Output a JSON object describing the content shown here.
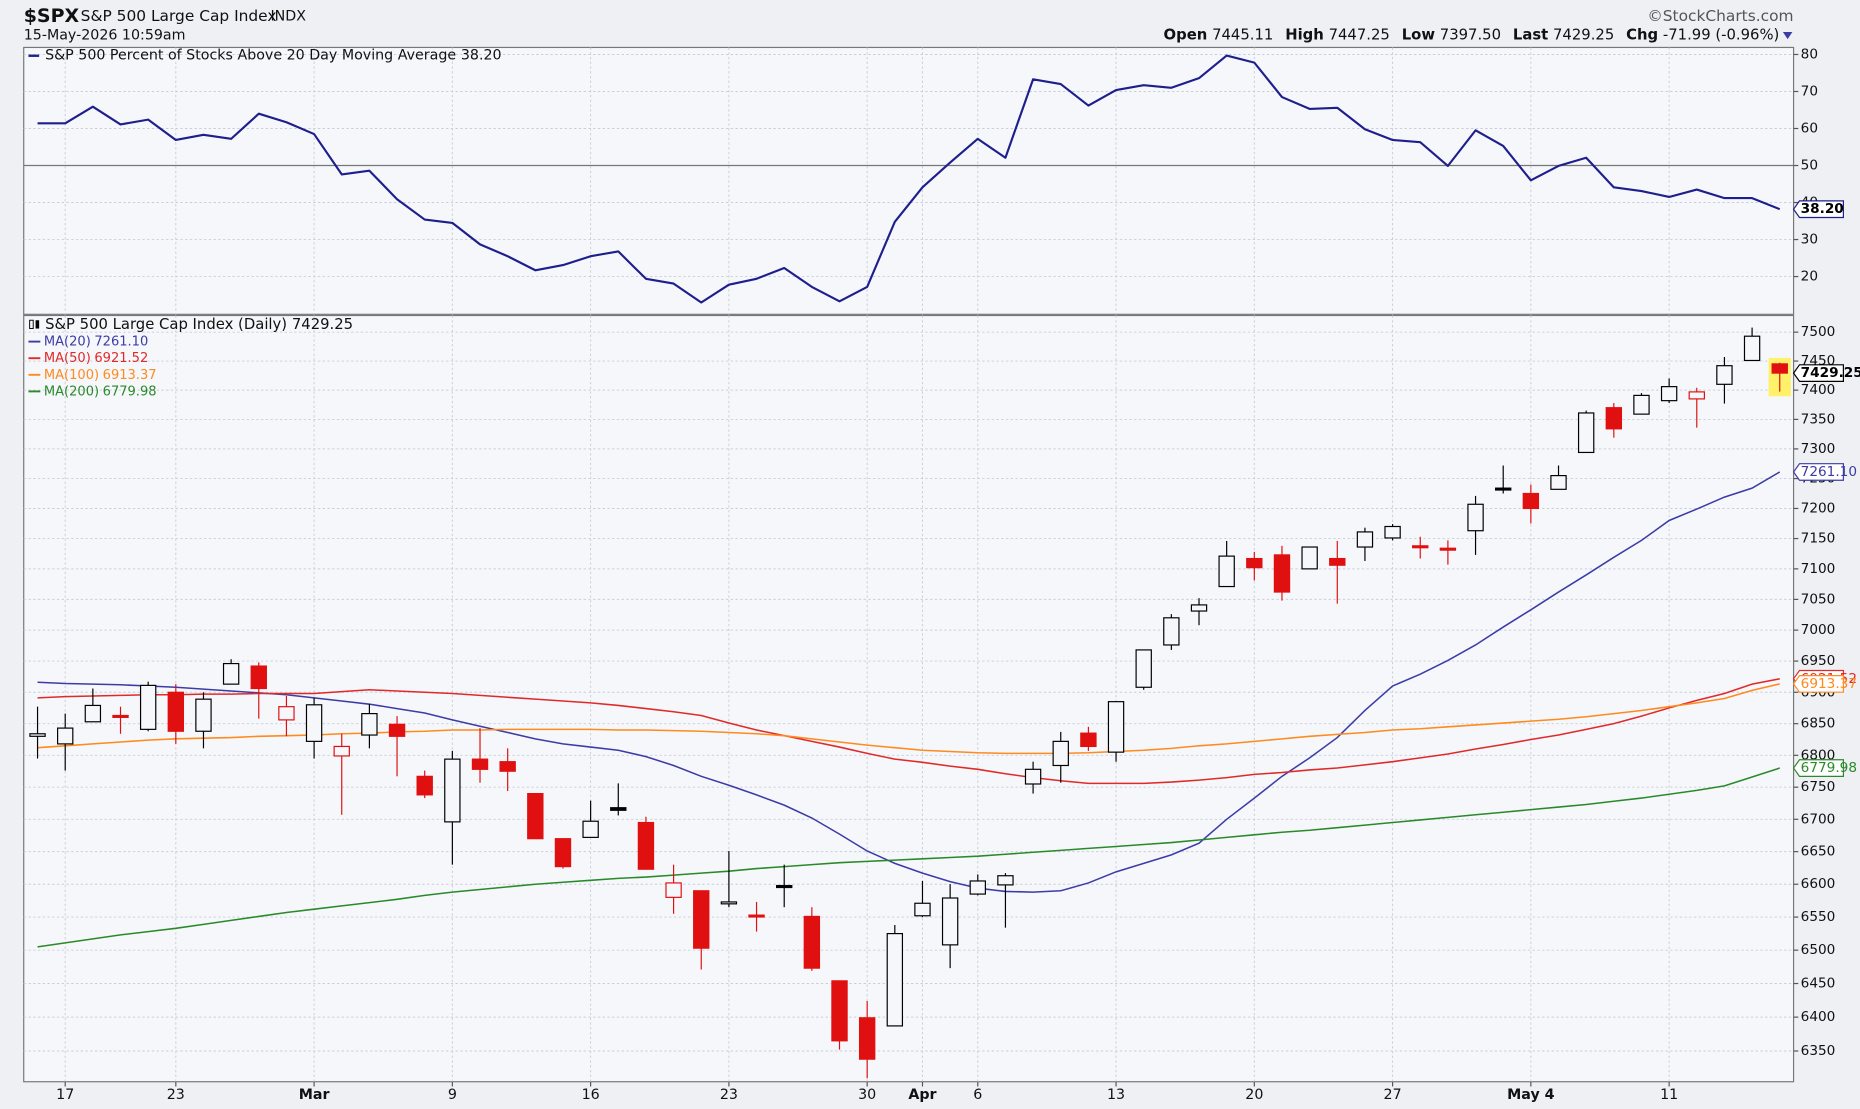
{
  "header": {
    "symbol": "$SPX",
    "name": "S&P 500 Large Cap Index",
    "exchange": "INDX",
    "datetime": "15-May-2026 10:59am",
    "source": "©StockCharts.com",
    "quote": [
      {
        "label": "Open",
        "value": "7445.11"
      },
      {
        "label": "High",
        "value": "7447.25"
      },
      {
        "label": "Low",
        "value": "7397.50"
      },
      {
        "label": "Last",
        "value": "7429.25"
      },
      {
        "label": "Chg",
        "value": "-71.99 (-0.96%)"
      }
    ]
  },
  "chart_data": [
    {
      "type": "line",
      "legend": "S&P 500 Percent of Stocks Above 20 Day Moving Average",
      "last_label": "38.20",
      "color": "#1e1e8c",
      "values": [
        61.4,
        61.4,
        65.9,
        61.1,
        62.4,
        56.9,
        58.3,
        57.2,
        64.0,
        61.7,
        58.5,
        47.6,
        48.6,
        40.9,
        35.4,
        34.5,
        28.7,
        25.5,
        21.7,
        23.1,
        25.5,
        26.8,
        19.4,
        18.1,
        13.0,
        17.8,
        19.4,
        22.3,
        17.2,
        13.3,
        17.2,
        34.8,
        44.1,
        50.8,
        57.2,
        52.1,
        73.3,
        72.0,
        66.2,
        70.4,
        71.7,
        71.0,
        73.6,
        79.7,
        77.8,
        68.5,
        65.3,
        65.6,
        59.8,
        56.9,
        56.3,
        49.9,
        59.5,
        55.3,
        46.0,
        49.9,
        52.1,
        44.1,
        43.1,
        41.5,
        43.5,
        41.2,
        41.2,
        38.2
      ],
      "ylim": [
        9.8,
        81.9
      ],
      "yticks": [
        20,
        30,
        40,
        50,
        60,
        70,
        80
      ],
      "reference": 50,
      "grid": true
    },
    {
      "type": "candlestick",
      "title": "S&P 500 Large Cap Index (Daily)",
      "last_label": "7429.25",
      "log": true,
      "grid": true,
      "up_color": "#000000",
      "down_color": "#e01010",
      "categories": [
        null,
        "17",
        null,
        null,
        null,
        "23",
        null,
        null,
        null,
        null,
        "Mar",
        null,
        null,
        null,
        null,
        "9",
        null,
        null,
        null,
        null,
        "16",
        null,
        null,
        null,
        null,
        "23",
        null,
        null,
        null,
        null,
        "30",
        null,
        "Apr",
        null,
        "6",
        null,
        null,
        null,
        null,
        "13",
        null,
        null,
        null,
        null,
        "20",
        null,
        null,
        null,
        null,
        "27",
        null,
        null,
        null,
        null,
        "May 4",
        null,
        null,
        null,
        null,
        "11",
        null,
        null,
        null,
        null
      ],
      "open": [
        6830,
        6818,
        6853,
        6863,
        6841,
        6900,
        6838,
        6913,
        6942,
        6856,
        6822,
        6799,
        6832,
        6849,
        6767,
        6696,
        6794,
        6790,
        6740,
        6670,
        6672,
        6718,
        6695,
        6580,
        6590,
        6571,
        6553,
        6598,
        6551,
        6454,
        6399,
        6387,
        6552,
        6508,
        6585,
        6599,
        6755,
        6784,
        6835,
        6805,
        6908,
        6976,
        7031,
        7071,
        7117,
        7123,
        7100,
        7117,
        7136,
        7151,
        7138,
        7134,
        7163,
        7234,
        7225,
        7232,
        7294,
        7370,
        7359,
        7382,
        7385,
        7410,
        7451,
        7445.11
      ],
      "high": [
        6877,
        6866,
        6906,
        6877,
        6917,
        6913,
        6900,
        6953,
        6948,
        6894,
        6891,
        6834,
        6881,
        6862,
        6776,
        6807,
        6843,
        6811,
        6740,
        6670,
        6729,
        6756,
        6704,
        6630,
        6590,
        6651,
        6573,
        6630,
        6565,
        6454,
        6424,
        6538,
        6605,
        6600,
        6615,
        6617,
        6790,
        6837,
        6845,
        6885,
        6968,
        7026,
        7052,
        7146,
        7128,
        7138,
        7136,
        7146,
        7168,
        7174,
        7153,
        7147,
        7221,
        7272,
        7240,
        7272,
        7365,
        7378,
        7395,
        7420,
        7404,
        7457,
        7508,
        7447.25
      ],
      "low": [
        6795,
        6776,
        6853,
        6834,
        6838,
        6818,
        6811,
        6913,
        6858,
        6830,
        6795,
        6707,
        6811,
        6767,
        6733,
        6630,
        6757,
        6744,
        6670,
        6624,
        6672,
        6706,
        6623,
        6555,
        6471,
        6565,
        6528,
        6565,
        6469,
        6352,
        6310,
        6387,
        6550,
        6473,
        6583,
        6534,
        6740,
        6757,
        6807,
        6790,
        6904,
        6968,
        7008,
        7071,
        7081,
        7048,
        7100,
        7043,
        7113,
        7147,
        7117,
        7107,
        7123,
        7225,
        7175,
        7232,
        7294,
        7319,
        7359,
        7378,
        7336,
        7377,
        7451,
        7397.5
      ],
      "close": [
        6834,
        6843,
        6879,
        6861,
        6911,
        6838,
        6889,
        6946,
        6906,
        6877,
        6880,
        6814,
        6866,
        6830,
        6738,
        6794,
        6778,
        6775,
        6670,
        6627,
        6697,
        6714,
        6623,
        6602,
        6503,
        6573,
        6551,
        6595,
        6473,
        6365,
        6338,
        6525,
        6571,
        6579,
        6605,
        6613,
        6778,
        6822,
        6814,
        6885,
        6968,
        7020,
        7041,
        7121,
        7102,
        7062,
        7136,
        7106,
        7161,
        7170,
        7136,
        7132,
        7207,
        7232,
        7200,
        7255,
        7361,
        7334,
        7391,
        7406,
        7397,
        7442,
        7493,
        7429.25
      ],
      "ylim": [
        6305,
        7529
      ],
      "yticks": [
        6350,
        6400,
        6450,
        6500,
        6550,
        6600,
        6650,
        6700,
        6750,
        6800,
        6850,
        6900,
        6950,
        7000,
        7050,
        7100,
        7150,
        7200,
        7250,
        7300,
        7350,
        7400,
        7450,
        7500
      ],
      "series": [
        {
          "name": "MA(20)",
          "last_label": "7261.10",
          "color": "#3c3ca6",
          "values": [
            6916,
            6914,
            6913,
            6912,
            6910,
            6908,
            6905,
            6902,
            6899,
            6896,
            6891,
            6886,
            6881,
            6874,
            6867,
            6856,
            6846,
            6836,
            6826,
            6818,
            6813,
            6808,
            6798,
            6784,
            6767,
            6753,
            6738,
            6722,
            6702,
            6677,
            6651,
            6632,
            6617,
            6604,
            6594,
            6589,
            6588,
            6590,
            6602,
            6619,
            6632,
            6645,
            6663,
            6700,
            6733,
            6767,
            6796,
            6828,
            6871,
            6910,
            6929,
            6951,
            6976,
            7005,
            7033,
            7062,
            7090,
            7119,
            7147,
            7180,
            7199,
            7219,
            7234,
            7261.1
          ]
        },
        {
          "name": "MA(50)",
          "last_label": "6921.52",
          "color": "#e02a2a",
          "values": [
            6891,
            6893,
            6894,
            6895,
            6896,
            6896,
            6897,
            6897,
            6898,
            6898,
            6898,
            6901,
            6904,
            6902,
            6900,
            6898,
            6895,
            6892,
            6889,
            6886,
            6883,
            6879,
            6874,
            6869,
            6863,
            6851,
            6840,
            6831,
            6822,
            6813,
            6803,
            6794,
            6789,
            6783,
            6778,
            6771,
            6765,
            6760,
            6756,
            6756,
            6756,
            6758,
            6761,
            6765,
            6770,
            6773,
            6777,
            6780,
            6785,
            6790,
            6796,
            6802,
            6810,
            6817,
            6825,
            6832,
            6841,
            6850,
            6862,
            6875,
            6887,
            6898,
            6913,
            6921.52
          ]
        },
        {
          "name": "MA(100)",
          "last_label": "6913.37",
          "color": "#ff8a1e",
          "values": [
            6812,
            6815,
            6818,
            6821,
            6824,
            6826,
            6827,
            6828,
            6830,
            6831,
            6832,
            6834,
            6835,
            6837,
            6838,
            6840,
            6840,
            6841,
            6841,
            6841,
            6841,
            6840,
            6840,
            6839,
            6838,
            6836,
            6834,
            6831,
            6826,
            6821,
            6816,
            6812,
            6808,
            6806,
            6804,
            6803,
            6803,
            6803,
            6804,
            6806,
            6808,
            6811,
            6815,
            6818,
            6822,
            6826,
            6830,
            6833,
            6836,
            6840,
            6842,
            6845,
            6848,
            6851,
            6854,
            6857,
            6861,
            6866,
            6871,
            6877,
            6883,
            6890,
            6903,
            6913.37
          ]
        },
        {
          "name": "MA(200)",
          "last_label": "6779.98",
          "color": "#2a8a2a",
          "values": [
            6505,
            6511,
            6517,
            6523,
            6528,
            6533,
            6539,
            6545,
            6551,
            6557,
            6562,
            6567,
            6572,
            6577,
            6583,
            6588,
            6592,
            6596,
            6600,
            6603,
            6606,
            6609,
            6611,
            6614,
            6617,
            6620,
            6624,
            6627,
            6630,
            6633,
            6635,
            6637,
            6639,
            6641,
            6643,
            6646,
            6649,
            6652,
            6655,
            6658,
            6661,
            6664,
            6668,
            6672,
            6676,
            6680,
            6683,
            6687,
            6691,
            6695,
            6699,
            6703,
            6707,
            6711,
            6715,
            6719,
            6723,
            6728,
            6733,
            6739,
            6745,
            6752,
            6766,
            6779.98
          ]
        }
      ]
    }
  ]
}
